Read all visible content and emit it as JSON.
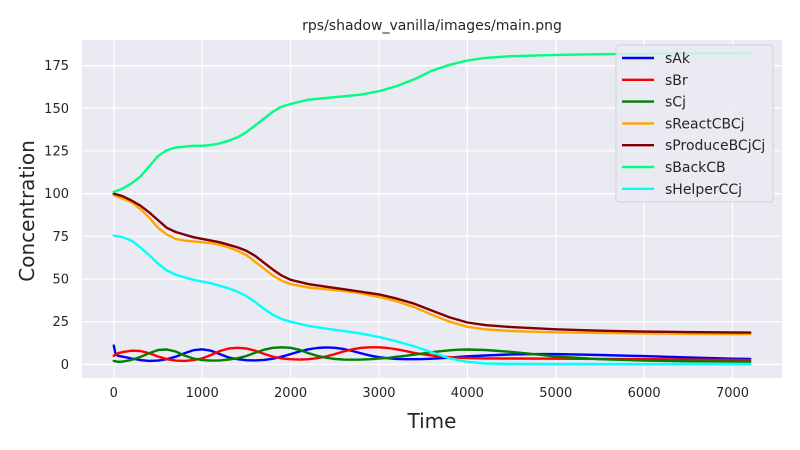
{
  "chart_data": {
    "type": "line",
    "title": "rps/shadow_vanilla/images/main.png",
    "xlabel": "Time",
    "ylabel": "Concentration",
    "xlim": [
      -360,
      7560
    ],
    "ylim": [
      -8,
      190
    ],
    "xticks": [
      0,
      1000,
      2000,
      3000,
      4000,
      5000,
      6000,
      7000
    ],
    "yticks": [
      0,
      25,
      50,
      75,
      100,
      125,
      150,
      175
    ],
    "grid": true,
    "legend_position": "top-right",
    "series": [
      {
        "name": "sAk",
        "color": "#0000ff",
        "x": [
          0,
          20,
          50,
          100,
          150,
          200,
          300,
          400,
          500,
          600,
          700,
          800,
          900,
          1000,
          1100,
          1200,
          1300,
          1400,
          1500,
          1600,
          1700,
          1800,
          1900,
          2000,
          2100,
          2200,
          2300,
          2400,
          2500,
          2600,
          2700,
          2800,
          2900,
          3000,
          3100,
          3200,
          3300,
          3400,
          3500,
          3600,
          3700,
          3800,
          3900,
          4000,
          4200,
          4500,
          4800,
          5000,
          5500,
          6000,
          6500,
          7000,
          7200
        ],
        "y": [
          11,
          6,
          5,
          4.5,
          4,
          3.4,
          2.5,
          2,
          2.2,
          3,
          4.5,
          6.5,
          8.3,
          8.8,
          8,
          6,
          4,
          3,
          2.4,
          2.3,
          2.6,
          3.3,
          4.5,
          6,
          7.5,
          8.8,
          9.6,
          9.9,
          9.7,
          9,
          7.8,
          6.4,
          5.1,
          4.2,
          3.6,
          3.2,
          3,
          3,
          3.1,
          3.3,
          3.6,
          3.9,
          4.3,
          4.7,
          5.2,
          5.8,
          6,
          6,
          5.5,
          4.8,
          4,
          3.3,
          3.2
        ]
      },
      {
        "name": "sBr",
        "color": "#ff0000",
        "x": [
          0,
          50,
          100,
          200,
          300,
          400,
          500,
          600,
          700,
          800,
          900,
          1000,
          1100,
          1200,
          1300,
          1400,
          1500,
          1600,
          1700,
          1800,
          1900,
          2000,
          2100,
          2200,
          2300,
          2400,
          2500,
          2600,
          2700,
          2800,
          2900,
          3000,
          3100,
          3200,
          3300,
          3400,
          3500,
          3600,
          3700,
          3800,
          3900,
          4000,
          4200,
          4500,
          5000,
          5500,
          6000,
          6500,
          7000,
          7200
        ],
        "y": [
          5,
          6.5,
          7.2,
          8,
          7.8,
          6.5,
          4.6,
          3,
          2.2,
          2,
          2.5,
          3.5,
          5.5,
          7.8,
          9.3,
          9.7,
          9.3,
          8,
          6.1,
          4.5,
          3.5,
          3,
          2.8,
          3,
          3.6,
          4.6,
          6,
          7.5,
          8.8,
          9.7,
          10,
          10,
          9.6,
          8.8,
          7.8,
          6.7,
          5.9,
          5.2,
          4.6,
          4.2,
          3.9,
          3.7,
          3.5,
          3.4,
          3.3,
          3.2,
          3.1,
          2.8,
          2.6,
          2.5
        ]
      },
      {
        "name": "sCj",
        "color": "#008000",
        "x": [
          0,
          50,
          100,
          200,
          300,
          400,
          500,
          600,
          700,
          800,
          900,
          1000,
          1100,
          1200,
          1300,
          1400,
          1500,
          1600,
          1700,
          1800,
          1900,
          2000,
          2100,
          2200,
          2300,
          2400,
          2500,
          2600,
          2700,
          2800,
          2900,
          3000,
          3100,
          3200,
          3300,
          3400,
          3500,
          3600,
          3700,
          3800,
          3900,
          4000,
          4200,
          4500,
          4800,
          5000,
          5500,
          6000,
          6500,
          7000,
          7200
        ],
        "y": [
          2,
          1.5,
          1.6,
          2.6,
          4.3,
          6.5,
          8.4,
          8.7,
          7.5,
          5.2,
          3.4,
          2.5,
          2.2,
          2.3,
          2.8,
          3.6,
          4.9,
          6.8,
          8.6,
          9.7,
          10,
          9.7,
          8.5,
          6.6,
          5,
          3.9,
          3.2,
          2.8,
          2.7,
          2.8,
          3,
          3.4,
          3.8,
          4.4,
          5,
          5.7,
          6.4,
          7.1,
          7.7,
          8.2,
          8.6,
          8.7,
          8.4,
          7.3,
          5.7,
          4.6,
          3,
          2.2,
          1.8,
          1.6,
          1.5
        ]
      },
      {
        "name": "sReactCBCj",
        "color": "#ffa500",
        "x": [
          0,
          100,
          200,
          300,
          400,
          500,
          600,
          700,
          800,
          900,
          1000,
          1100,
          1200,
          1300,
          1400,
          1500,
          1600,
          1700,
          1800,
          1900,
          2000,
          2200,
          2400,
          2600,
          2800,
          3000,
          3200,
          3400,
          3600,
          3800,
          4000,
          4200,
          4500,
          5000,
          5500,
          6000,
          6500,
          7000,
          7200
        ],
        "y": [
          99,
          97,
          95,
          91,
          86,
          80,
          76,
          73.5,
          72.5,
          72,
          71.5,
          71,
          70,
          68.5,
          66.5,
          64,
          60,
          56,
          52,
          49,
          47,
          45,
          44,
          43,
          41.5,
          39.5,
          37,
          33.5,
          29,
          25,
          22,
          20.5,
          19.5,
          18.8,
          18.4,
          18.1,
          17.9,
          17.8,
          17.8
        ]
      },
      {
        "name": "sProduceBCjCj",
        "color": "#800000",
        "x": [
          0,
          100,
          200,
          300,
          400,
          500,
          600,
          700,
          800,
          900,
          1000,
          1100,
          1200,
          1300,
          1400,
          1500,
          1600,
          1700,
          1800,
          1900,
          2000,
          2200,
          2400,
          2600,
          2800,
          3000,
          3200,
          3400,
          3600,
          3800,
          4000,
          4200,
          4500,
          5000,
          5500,
          6000,
          6500,
          7000,
          7200
        ],
        "y": [
          100,
          98.5,
          96,
          93,
          89,
          84.5,
          80,
          77.5,
          76,
          74.5,
          73.5,
          72.5,
          71.5,
          70,
          68.5,
          66.5,
          63.5,
          59.5,
          55.5,
          52,
          49.5,
          47,
          45.5,
          44,
          42.5,
          41,
          38.5,
          35.5,
          31.5,
          27.5,
          24.5,
          23,
          21.8,
          20.5,
          19.7,
          19.2,
          18.9,
          18.7,
          18.6
        ]
      },
      {
        "name": "sBackCB",
        "color": "#00ff7f",
        "x": [
          0,
          100,
          200,
          300,
          400,
          500,
          600,
          700,
          800,
          900,
          1000,
          1100,
          1200,
          1300,
          1400,
          1500,
          1600,
          1700,
          1800,
          1900,
          2000,
          2200,
          2400,
          2600,
          2800,
          3000,
          3200,
          3400,
          3600,
          3800,
          4000,
          4200,
          4500,
          5000,
          5500,
          6000,
          6500,
          7000,
          7200
        ],
        "y": [
          101,
          103,
          106,
          110,
          116,
          122,
          125.5,
          127,
          127.5,
          128,
          128,
          128.5,
          129.5,
          131,
          133,
          136,
          140,
          144,
          148,
          151,
          152.5,
          155,
          156,
          157,
          158,
          160,
          163,
          167,
          172,
          175.5,
          178,
          179.5,
          180.5,
          181.3,
          181.7,
          182,
          182.1,
          182.2,
          182.2
        ]
      },
      {
        "name": "sHelperCCj",
        "color": "#00ffff",
        "x": [
          0,
          100,
          200,
          300,
          400,
          500,
          600,
          700,
          800,
          900,
          1000,
          1100,
          1200,
          1300,
          1400,
          1500,
          1600,
          1700,
          1800,
          1900,
          2000,
          2200,
          2400,
          2600,
          2800,
          3000,
          3200,
          3400,
          3600,
          3800,
          4000,
          4200,
          4500,
          5000,
          6000,
          7000,
          7200
        ],
        "y": [
          75.5,
          74.5,
          72.5,
          68.5,
          64,
          59,
          55,
          52.5,
          51,
          49.5,
          48.5,
          47.5,
          46,
          44.5,
          42.5,
          40,
          36.5,
          32.5,
          29,
          26.5,
          25,
          22.5,
          21,
          19.5,
          18,
          16,
          13.5,
          10.5,
          7,
          3.5,
          1.5,
          0.5,
          0.3,
          0.2,
          0.2,
          0.2,
          0.2
        ]
      }
    ]
  }
}
